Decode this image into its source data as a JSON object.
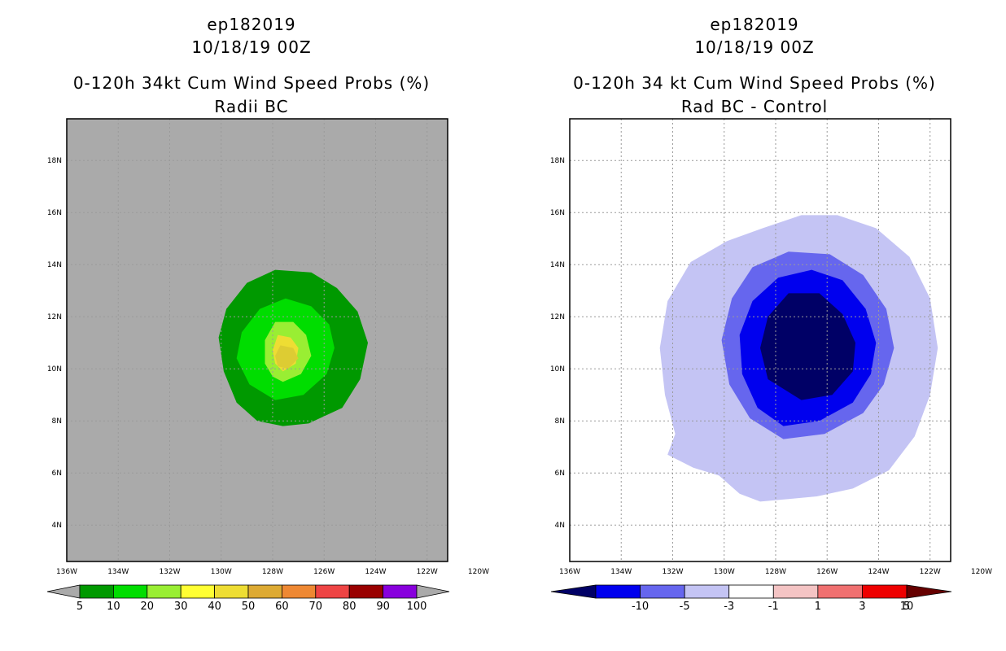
{
  "chart_data": [
    {
      "type": "contour",
      "storm_id": "ep182019",
      "datetime": "10/18/19 00Z",
      "title": "0-120h 34kt Cum Wind Speed Probs (%)",
      "subtitle": "Radii BC",
      "x_ticks": [
        "136W",
        "134W",
        "132W",
        "130W",
        "128W",
        "126W",
        "124W",
        "122W",
        "120W"
      ],
      "y_ticks": [
        "4N",
        "6N",
        "8N",
        "10N",
        "12N",
        "14N",
        "16N",
        "18N"
      ],
      "xlim": [
        -136,
        -121.2
      ],
      "ylim": [
        2.6,
        19.6
      ],
      "background_color": "#aaaaaa",
      "colorbar": {
        "levels": [
          "5",
          "10",
          "20",
          "30",
          "40",
          "50",
          "60",
          "70",
          "80",
          "90",
          "100"
        ],
        "colors": [
          "#009900",
          "#00dd00",
          "#99ee33",
          "#ffff33",
          "#eedd33",
          "#ddaa33",
          "#ee8833",
          "#ee4444",
          "#990000",
          "#8800dd"
        ],
        "end_colors": [
          "#aaaaaa",
          "#aaaaaa"
        ]
      },
      "contours": [
        {
          "level": "5-10",
          "color": "#009900",
          "points": [
            [
              -127.6,
              7.8
            ],
            [
              -126.6,
              7.9
            ],
            [
              -125.3,
              8.5
            ],
            [
              -124.6,
              9.6
            ],
            [
              -124.3,
              11.0
            ],
            [
              -124.7,
              12.2
            ],
            [
              -125.5,
              13.1
            ],
            [
              -126.5,
              13.7
            ],
            [
              -127.9,
              13.8
            ],
            [
              -129.0,
              13.3
            ],
            [
              -129.8,
              12.3
            ],
            [
              -130.1,
              11.2
            ],
            [
              -129.9,
              9.9
            ],
            [
              -129.4,
              8.7
            ],
            [
              -128.6,
              8.0
            ]
          ]
        },
        {
          "level": "10-20",
          "color": "#00dd00",
          "points": [
            [
              -127.9,
              8.8
            ],
            [
              -126.8,
              9.0
            ],
            [
              -125.9,
              9.8
            ],
            [
              -125.6,
              10.8
            ],
            [
              -125.8,
              11.7
            ],
            [
              -126.5,
              12.4
            ],
            [
              -127.5,
              12.7
            ],
            [
              -128.5,
              12.3
            ],
            [
              -129.2,
              11.4
            ],
            [
              -129.4,
              10.4
            ],
            [
              -128.9,
              9.4
            ]
          ]
        },
        {
          "level": "20-30",
          "color": "#99ee33",
          "points": [
            [
              -127.6,
              9.5
            ],
            [
              -126.9,
              9.8
            ],
            [
              -126.5,
              10.5
            ],
            [
              -126.7,
              11.3
            ],
            [
              -127.2,
              11.8
            ],
            [
              -127.9,
              11.8
            ],
            [
              -128.3,
              11.1
            ],
            [
              -128.3,
              10.2
            ],
            [
              -128.0,
              9.7
            ]
          ]
        },
        {
          "level": "30-40",
          "color": "#eedd33",
          "points": [
            [
              -127.6,
              9.9
            ],
            [
              -127.1,
              10.2
            ],
            [
              -127.0,
              10.8
            ],
            [
              -127.3,
              11.2
            ],
            [
              -127.8,
              11.3
            ],
            [
              -128.0,
              10.7
            ],
            [
              -127.9,
              10.2
            ]
          ]
        },
        {
          "level": "40-50",
          "color": "#ddcc33",
          "points": [
            [
              -127.4,
              10.0
            ],
            [
              -127.0,
              10.4
            ],
            [
              -127.2,
              10.8
            ],
            [
              -127.7,
              10.9
            ],
            [
              -127.9,
              10.5
            ],
            [
              -127.8,
              10.1
            ]
          ]
        }
      ]
    },
    {
      "type": "contour",
      "storm_id": "ep182019",
      "datetime": "10/18/19 00Z",
      "title": "0-120h 34 kt Cum Wind Speed Probs (%)",
      "subtitle": "Rad BC - Control",
      "x_ticks": [
        "136W",
        "134W",
        "132W",
        "130W",
        "128W",
        "126W",
        "124W",
        "122W",
        "120W"
      ],
      "y_ticks": [
        "4N",
        "6N",
        "8N",
        "10N",
        "12N",
        "14N",
        "16N",
        "18N"
      ],
      "xlim": [
        -136,
        -121.2
      ],
      "ylim": [
        2.6,
        19.6
      ],
      "background_color": "#ffffff",
      "colorbar": {
        "levels": [
          "-10",
          "-5",
          "-3",
          "-1",
          "1",
          "3",
          "5",
          "10"
        ],
        "colors": [
          "#0000ee",
          "#6666ee",
          "#c4c4f4",
          "#ffffff",
          "#f4c4c4",
          "#f07070",
          "#ee0000"
        ],
        "end_colors": [
          "#000066",
          "#660000"
        ]
      },
      "contours": [
        {
          "level": "-3 to -1",
          "color": "#c4c4f4",
          "points": [
            [
              -128.6,
              4.9
            ],
            [
              -127.5,
              5.0
            ],
            [
              -126.4,
              5.1
            ],
            [
              -125.0,
              5.4
            ],
            [
              -123.6,
              6.1
            ],
            [
              -122.6,
              7.4
            ],
            [
              -122.0,
              9.0
            ],
            [
              -121.7,
              10.8
            ],
            [
              -122.0,
              12.7
            ],
            [
              -122.8,
              14.3
            ],
            [
              -124.1,
              15.4
            ],
            [
              -125.6,
              15.9
            ],
            [
              -127.0,
              15.9
            ],
            [
              -128.5,
              15.4
            ],
            [
              -129.9,
              14.9
            ],
            [
              -131.3,
              14.1
            ],
            [
              -132.2,
              12.6
            ],
            [
              -132.5,
              10.8
            ],
            [
              -132.3,
              9.0
            ],
            [
              -131.9,
              7.5
            ],
            [
              -132.2,
              6.7
            ],
            [
              -131.2,
              6.2
            ],
            [
              -130.2,
              5.9
            ],
            [
              -129.4,
              5.2
            ]
          ]
        },
        {
          "level": "-5 to -3",
          "color": "#6666ee",
          "points": [
            [
              -127.7,
              7.3
            ],
            [
              -126.1,
              7.5
            ],
            [
              -124.6,
              8.3
            ],
            [
              -123.8,
              9.4
            ],
            [
              -123.4,
              10.8
            ],
            [
              -123.7,
              12.3
            ],
            [
              -124.6,
              13.6
            ],
            [
              -125.9,
              14.4
            ],
            [
              -127.5,
              14.5
            ],
            [
              -128.9,
              13.9
            ],
            [
              -129.7,
              12.7
            ],
            [
              -130.1,
              11.1
            ],
            [
              -129.8,
              9.4
            ],
            [
              -129.0,
              8.1
            ]
          ]
        },
        {
          "level": "-10 to -5",
          "color": "#0000ee",
          "points": [
            [
              -127.7,
              7.8
            ],
            [
              -126.3,
              8.0
            ],
            [
              -125.0,
              8.7
            ],
            [
              -124.3,
              9.8
            ],
            [
              -124.1,
              11.0
            ],
            [
              -124.5,
              12.3
            ],
            [
              -125.4,
              13.4
            ],
            [
              -126.6,
              13.8
            ],
            [
              -127.9,
              13.5
            ],
            [
              -128.9,
              12.6
            ],
            [
              -129.4,
              11.3
            ],
            [
              -129.3,
              9.8
            ],
            [
              -128.7,
              8.5
            ]
          ]
        },
        {
          "level": "< -10",
          "color": "#000066",
          "points": [
            [
              -127.0,
              8.8
            ],
            [
              -125.8,
              9.0
            ],
            [
              -125.0,
              9.9
            ],
            [
              -124.9,
              11.0
            ],
            [
              -125.4,
              12.1
            ],
            [
              -126.3,
              12.9
            ],
            [
              -127.5,
              12.9
            ],
            [
              -128.3,
              12.0
            ],
            [
              -128.6,
              10.8
            ],
            [
              -128.3,
              9.6
            ]
          ]
        }
      ]
    }
  ]
}
